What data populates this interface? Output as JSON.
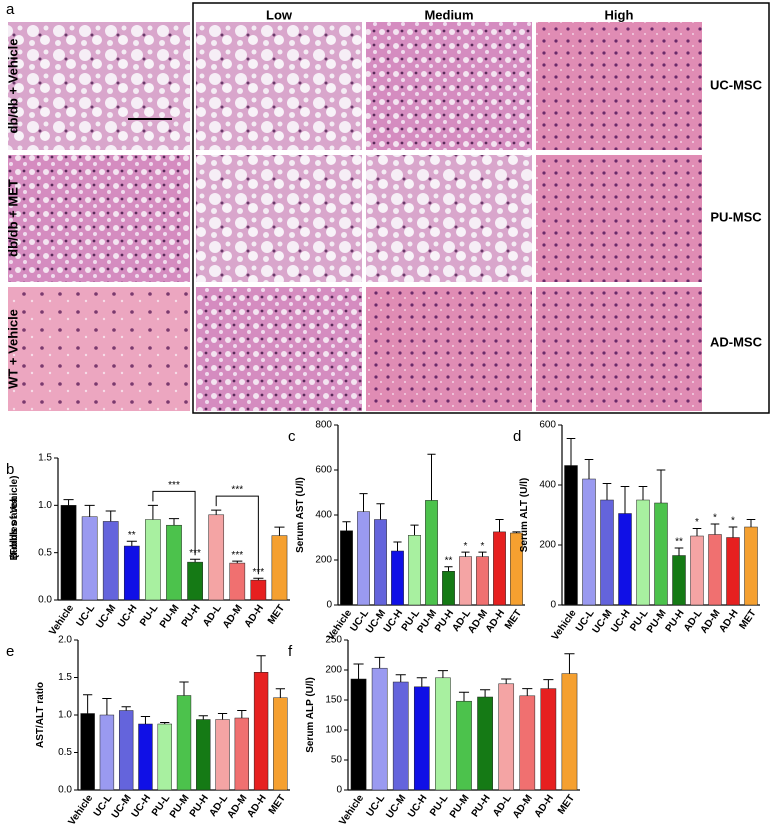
{
  "panel_a": {
    "label": "a",
    "columns": [
      "Low",
      "Medium",
      "High"
    ],
    "rows": [
      "db/db + Vehicle",
      "db/db + MET",
      "WT + Vehicle"
    ],
    "groups": [
      "UC-MSC",
      "PU-MSC",
      "AD-MSC"
    ]
  },
  "chart_data": [
    {
      "type": "bar",
      "label": "b",
      "y_label": "Bubbles area\n(Folds of Vehicle)",
      "categories": [
        "Vehicle",
        "UC-L",
        "UC-M",
        "UC-H",
        "PU-L",
        "PU-M",
        "PU-H",
        "AD-L",
        "AD-M",
        "AD-H",
        "MET"
      ],
      "colors": [
        "#000000",
        "#9a9af0",
        "#6464dc",
        "#1010e6",
        "#a8f0a0",
        "#4cc24c",
        "#157a15",
        "#f4a4a4",
        "#f07070",
        "#e62020",
        "#f5a030"
      ],
      "values": [
        1.0,
        0.88,
        0.83,
        0.57,
        0.85,
        0.79,
        0.4,
        0.9,
        0.39,
        0.21,
        0.68
      ],
      "errors": [
        0.06,
        0.12,
        0.11,
        0.05,
        0.15,
        0.07,
        0.03,
        0.05,
        0.02,
        0.02,
        0.09
      ],
      "annotations": [
        null,
        null,
        null,
        "**",
        null,
        null,
        "***",
        null,
        "***",
        "***",
        null
      ],
      "brackets": [
        {
          "from": "PU-L",
          "to": "PU-H",
          "label": "***"
        },
        {
          "from": "AD-L",
          "to": "AD-H",
          "label": "***"
        }
      ],
      "ylim": [
        0,
        1.5
      ],
      "yticks": [
        {
          "value": 0,
          "label": "0.0"
        },
        {
          "value": 0.5,
          "label": "0.5"
        },
        {
          "value": 1.0,
          "label": "1.0"
        },
        {
          "value": 1.5,
          "label": "1.5"
        }
      ]
    },
    {
      "type": "bar",
      "label": "c",
      "y_label": "Serum AST (U/l)",
      "categories": [
        "Vehicle",
        "UC-L",
        "UC-M",
        "UC-H",
        "PU-L",
        "PU-M",
        "PU-H",
        "AD-L",
        "AD-M",
        "AD-H",
        "MET"
      ],
      "colors": [
        "#000000",
        "#9a9af0",
        "#6464dc",
        "#1010e6",
        "#a8f0a0",
        "#4cc24c",
        "#157a15",
        "#f4a4a4",
        "#f07070",
        "#e62020",
        "#f5a030"
      ],
      "values": [
        330,
        415,
        380,
        240,
        310,
        465,
        150,
        215,
        215,
        325,
        320
      ],
      "errors": [
        40,
        80,
        70,
        40,
        45,
        205,
        20,
        20,
        20,
        55,
        5
      ],
      "annotations": [
        null,
        null,
        null,
        null,
        null,
        null,
        "**",
        "*",
        "*",
        null,
        null
      ],
      "ylim": [
        0,
        800
      ],
      "yticks": [
        0,
        200,
        400,
        600,
        800
      ]
    },
    {
      "type": "bar",
      "label": "d",
      "y_label": "Serum ALT (U/l)",
      "categories": [
        "Vehicle",
        "UC-L",
        "UC-M",
        "UC-H",
        "PU-L",
        "PU-M",
        "PU-H",
        "AD-L",
        "AD-M",
        "AD-H",
        "MET"
      ],
      "colors": [
        "#000000",
        "#9a9af0",
        "#6464dc",
        "#1010e6",
        "#a8f0a0",
        "#4cc24c",
        "#157a15",
        "#f4a4a4",
        "#f07070",
        "#e62020",
        "#f5a030"
      ],
      "values": [
        465,
        420,
        350,
        305,
        350,
        340,
        165,
        230,
        235,
        225,
        260
      ],
      "errors": [
        90,
        65,
        55,
        90,
        45,
        110,
        25,
        25,
        35,
        35,
        25
      ],
      "annotations": [
        null,
        null,
        null,
        null,
        null,
        null,
        "**",
        "*",
        "*",
        "*",
        null
      ],
      "ylim": [
        0,
        600
      ],
      "yticks": [
        0,
        200,
        400,
        600
      ]
    },
    {
      "type": "bar",
      "label": "e",
      "y_label": "AST/ALT ratio",
      "categories": [
        "Vehicle",
        "UC-L",
        "UC-M",
        "UC-H",
        "PU-L",
        "PU-M",
        "PU-H",
        "AD-L",
        "AD-M",
        "AD-H",
        "MET"
      ],
      "colors": [
        "#000000",
        "#9a9af0",
        "#6464dc",
        "#1010e6",
        "#a8f0a0",
        "#4cc24c",
        "#157a15",
        "#f4a4a4",
        "#f07070",
        "#e62020",
        "#f5a030"
      ],
      "values": [
        1.02,
        1.0,
        1.06,
        0.88,
        0.88,
        1.26,
        0.94,
        0.94,
        0.96,
        1.57,
        1.23
      ],
      "errors": [
        0.25,
        0.22,
        0.05,
        0.1,
        0.02,
        0.18,
        0.05,
        0.08,
        0.1,
        0.22,
        0.12
      ],
      "ylim": [
        0,
        2.0
      ],
      "yticks": [
        {
          "value": 0,
          "label": "0.0"
        },
        {
          "value": 0.5,
          "label": "0.5"
        },
        {
          "value": 1.0,
          "label": "1.0"
        },
        {
          "value": 1.5,
          "label": "1.5"
        },
        {
          "value": 2.0,
          "label": "2.0"
        }
      ]
    },
    {
      "type": "bar",
      "label": "f",
      "y_label": "Serum ALP (U/l)",
      "categories": [
        "Vehicle",
        "UC-L",
        "UC-M",
        "UC-H",
        "PU-L",
        "PU-M",
        "PU-H",
        "AD-L",
        "AD-M",
        "AD-H",
        "MET"
      ],
      "colors": [
        "#000000",
        "#9a9af0",
        "#6464dc",
        "#1010e6",
        "#a8f0a0",
        "#4cc24c",
        "#157a15",
        "#f4a4a4",
        "#f07070",
        "#e62020",
        "#f5a030"
      ],
      "values": [
        185,
        203,
        180,
        172,
        187,
        148,
        155,
        177,
        157,
        169,
        194
      ],
      "errors": [
        25,
        18,
        12,
        15,
        12,
        15,
        12,
        8,
        12,
        15,
        33
      ],
      "ylim": [
        0,
        250
      ],
      "yticks": [
        0,
        50,
        100,
        150,
        200,
        250
      ]
    }
  ]
}
